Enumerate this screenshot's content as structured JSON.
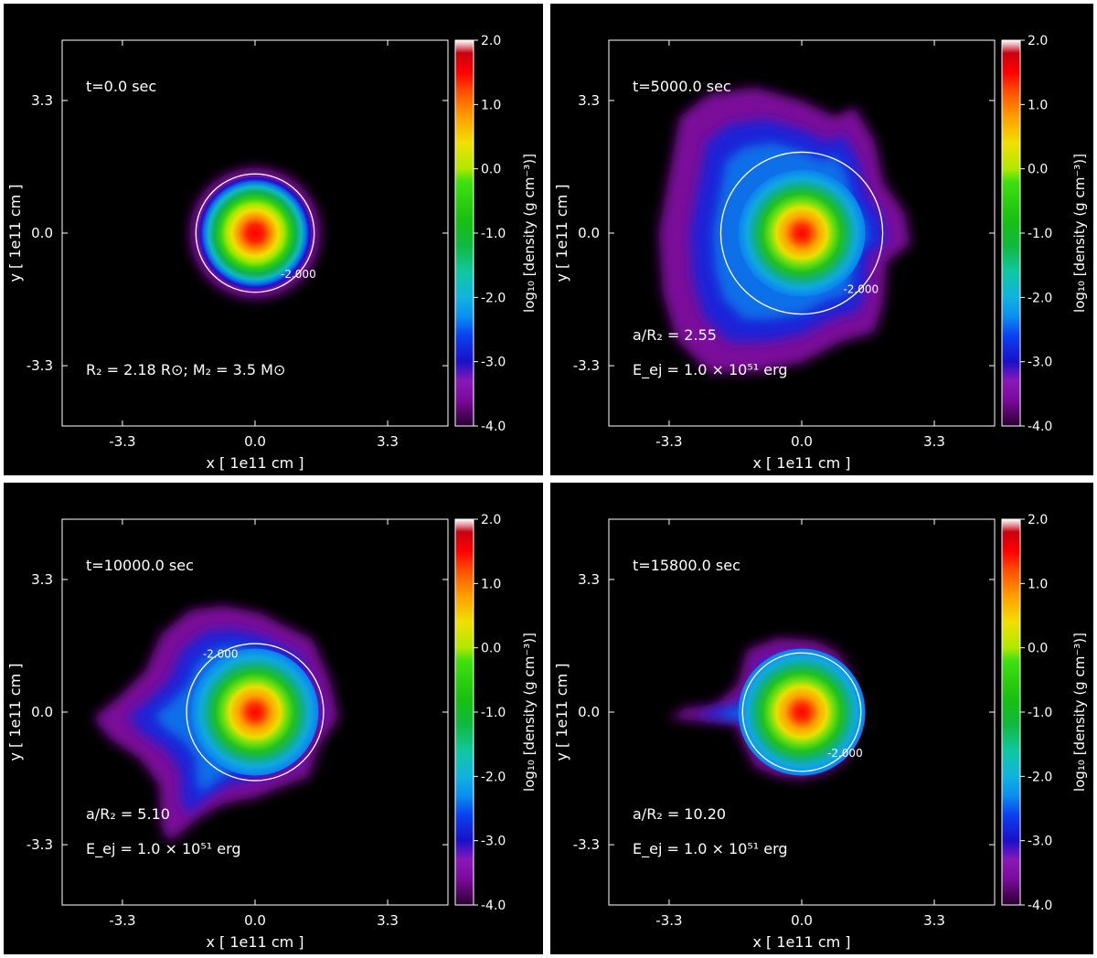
{
  "chart_data": [
    {
      "type": "heatmap",
      "time_label": "t=0.0 sec",
      "annotations": [
        "R₂ = 2.18 R⊙;    M₂ = 3.5 M⊙"
      ],
      "xlabel": "x  [ 1e11  cm ]",
      "ylabel": "y  [ 1e11  cm ]",
      "x_ticks": [
        "-3.3",
        "0.0",
        "3.3"
      ],
      "y_ticks": [
        "3.3",
        "0.0",
        "-3.3"
      ],
      "colorbar_label": "log₁₀ [density (g cm⁻³)]",
      "colorbar_ticks": [
        "2.0",
        "1.0",
        "0.0",
        "-1.0",
        "-2.0",
        "-3.0",
        "-4.0"
      ],
      "colorbar_range": [
        -4.0,
        2.0
      ],
      "contour_label": "-2.000",
      "contour_level": -2.0,
      "shape": "sphere",
      "core_log_density": 2.0
    },
    {
      "type": "heatmap",
      "time_label": "t=5000.0 sec",
      "annotations": [
        "a/R₂ = 2.55",
        "E_ej = 1.0 × 10⁵¹ erg"
      ],
      "xlabel": "x  [ 1e11  cm ]",
      "ylabel": "y  [ 1e11  cm ]",
      "x_ticks": [
        "-3.3",
        "0.0",
        "3.3"
      ],
      "y_ticks": [
        "3.3",
        "0.0",
        "-3.3"
      ],
      "colorbar_label": "log₁₀ [density (g cm⁻³)]",
      "colorbar_ticks": [
        "2.0",
        "1.0",
        "0.0",
        "-1.0",
        "-2.0",
        "-3.0",
        "-4.0"
      ],
      "colorbar_range": [
        -4.0,
        2.0
      ],
      "contour_label": "-2.000",
      "contour_level": -2.0,
      "shape": "ablated",
      "core_log_density": 1.5
    },
    {
      "type": "heatmap",
      "time_label": "t=10000.0 sec",
      "annotations": [
        "a/R₂ = 5.10",
        "E_ej = 1.0 × 10⁵¹ erg"
      ],
      "xlabel": "x  [ 1e11  cm ]",
      "ylabel": "y  [ 1e11  cm ]",
      "x_ticks": [
        "-3.3",
        "0.0",
        "3.3"
      ],
      "y_ticks": [
        "3.3",
        "0.0",
        "-3.3"
      ],
      "colorbar_label": "log₁₀ [density (g cm⁻³)]",
      "colorbar_ticks": [
        "2.0",
        "1.0",
        "0.0",
        "-1.0",
        "-2.0",
        "-3.0",
        "-4.0"
      ],
      "colorbar_range": [
        -4.0,
        2.0
      ],
      "contour_label": "-2.000",
      "contour_level": -2.0,
      "shape": "tail",
      "core_log_density": 1.5
    },
    {
      "type": "heatmap",
      "time_label": "t=15800.0 sec",
      "annotations": [
        "a/R₂ = 10.20",
        "E_ej = 1.0 × 10⁵¹ erg"
      ],
      "xlabel": "x  [ 1e11  cm ]",
      "ylabel": "y  [ 1e11  cm ]",
      "x_ticks": [
        "-3.3",
        "0.0",
        "3.3"
      ],
      "y_ticks": [
        "3.3",
        "0.0",
        "-3.3"
      ],
      "colorbar_label": "log₁₀ [density (g cm⁻³)]",
      "colorbar_ticks": [
        "2.0",
        "1.0",
        "0.0",
        "-1.0",
        "-2.0",
        "-3.0",
        "-4.0"
      ],
      "colorbar_range": [
        -4.0,
        2.0
      ],
      "contour_label": "-2.000",
      "contour_level": -2.0,
      "shape": "compact",
      "core_log_density": 1.5
    }
  ]
}
